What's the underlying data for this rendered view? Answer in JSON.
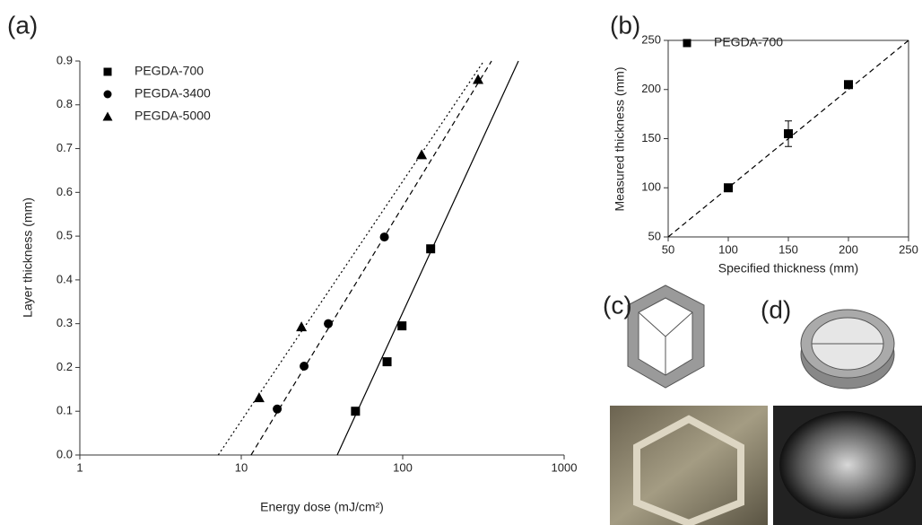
{
  "chart_data": [
    {
      "type": "scatter",
      "panel_label": "(a)",
      "xlabel": "Energy dose (mJ/cm²)",
      "ylabel": "Layer thickness (mm)",
      "xscale": "log",
      "xlim": [
        1,
        1000
      ],
      "xticks": [
        1,
        10,
        100,
        1000
      ],
      "ylim": [
        0,
        0.9
      ],
      "yticks": [
        {
          "value": 0,
          "label": "0.0"
        },
        0.1,
        0.2,
        0.3,
        0.4,
        0.5,
        0.6,
        0.7,
        0.8,
        0.9
      ],
      "legend": "upper left",
      "series": [
        {
          "name": "PEGDA-700",
          "marker": "square",
          "color": "#000000",
          "x": [
            51,
            80,
            99,
            149
          ],
          "y": [
            0.1,
            0.213,
            0.295,
            0.471
          ],
          "fit": {
            "x": [
              39.3,
              521
            ],
            "y": [
              0,
              0.9
            ],
            "dash": "solid"
          }
        },
        {
          "name": "PEGDA-3400",
          "marker": "circle",
          "color": "#000000",
          "x": [
            16.7,
            24.5,
            34.6,
            77
          ],
          "y": [
            0.105,
            0.203,
            0.3,
            0.498
          ],
          "fit": {
            "x": [
              11.5,
              355
            ],
            "y": [
              0,
              0.9
            ],
            "dash": "dashed"
          }
        },
        {
          "name": "PEGDA-5000",
          "marker": "triangle",
          "color": "#000000",
          "x": [
            12.9,
            23.6,
            131,
            293
          ],
          "y": [
            0.131,
            0.293,
            0.686,
            0.858
          ],
          "fit": {
            "x": [
              7.2,
              318
            ],
            "y": [
              0,
              0.9
            ],
            "dash": "dotted"
          }
        }
      ]
    },
    {
      "type": "scatter",
      "panel_label": "(b)",
      "xlabel": "Specified thickness (mm)",
      "ylabel": "Measured thickness (mm)",
      "xscale": "linear",
      "xlim": [
        50,
        250
      ],
      "xticks": [
        50,
        100,
        150,
        200,
        250
      ],
      "ylim": [
        50,
        250
      ],
      "yticks": [
        50,
        100,
        150,
        200,
        250
      ],
      "legend": "upper left",
      "frame": true,
      "series": [
        {
          "name": "PEGDA-700",
          "marker": "square",
          "color": "#000000",
          "x": [
            100,
            150,
            200
          ],
          "y": [
            100,
            155,
            205
          ],
          "errors": [
            3,
            13,
            3
          ],
          "fit": {
            "x": [
              50,
              250
            ],
            "y": [
              50,
              250
            ],
            "dash": "dashed"
          }
        }
      ]
    }
  ],
  "figures": [
    {
      "label": "(c)"
    },
    {
      "label": "(d)"
    }
  ]
}
